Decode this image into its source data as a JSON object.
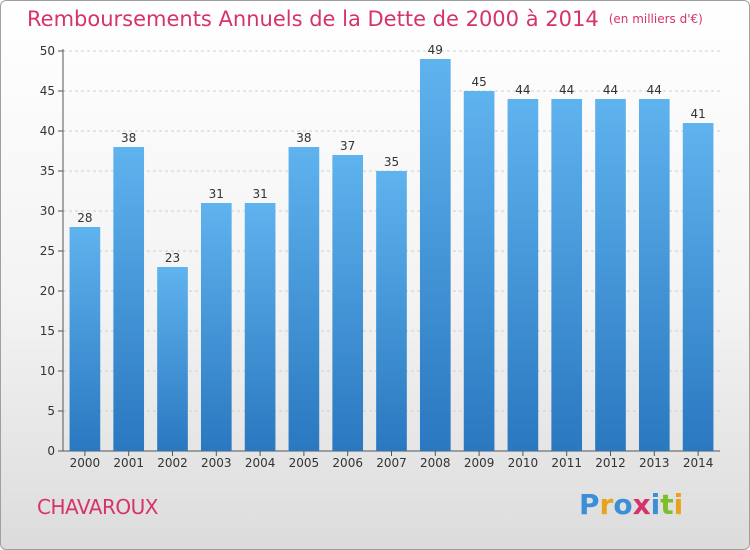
{
  "chart_data": {
    "type": "bar",
    "title": "Remboursements Annuels de la Dette de 2000 à 2014",
    "unit": "(en milliers d'€)",
    "categories": [
      "2000",
      "2001",
      "2002",
      "2003",
      "2004",
      "2005",
      "2006",
      "2007",
      "2008",
      "2009",
      "2010",
      "2011",
      "2012",
      "2013",
      "2014"
    ],
    "values": [
      28,
      38,
      23,
      31,
      31,
      38,
      37,
      35,
      49,
      45,
      44,
      44,
      44,
      44,
      41
    ],
    "ylim": [
      0,
      50
    ],
    "yticks": [
      "0",
      "5",
      "10",
      "15",
      "20",
      "25",
      "30",
      "35",
      "40",
      "45",
      "50"
    ],
    "grid": true,
    "bar_color": "#4a9fe0",
    "bar_color_dark": "#2a78c0"
  },
  "footer": {
    "commune": "CHAVAROUX",
    "logo_letters": [
      "P",
      "r",
      "o",
      "x",
      "i",
      "t",
      "i"
    ],
    "logo_colors": [
      "#3a8fd8",
      "#e8a21e",
      "#3a8fd8",
      "#d6336c",
      "#3a8fd8",
      "#7cbf2a",
      "#e8a21e"
    ]
  }
}
